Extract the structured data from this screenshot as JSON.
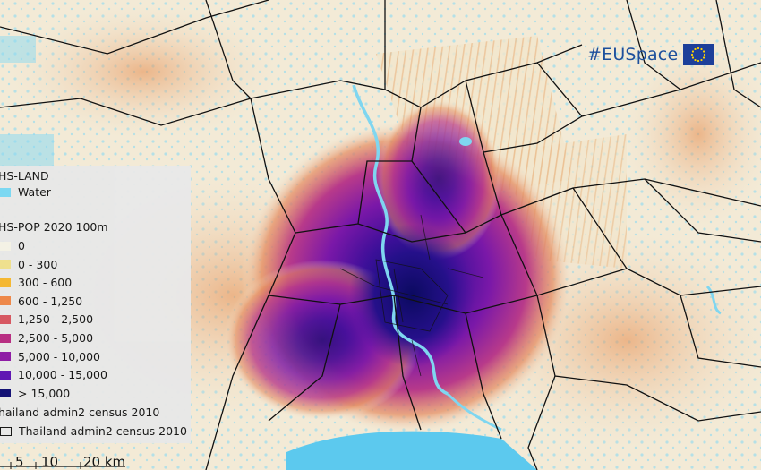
{
  "brand": {
    "text": "#EUSpace",
    "flag_icon": "eu-flag-icon",
    "color": "#1d4f9c"
  },
  "legend": {
    "land_title": "HS-LAND",
    "water_label": "Water",
    "water_color": "#78d8f4",
    "pop_title": "HS-POP 2020 100m",
    "pop_classes": [
      {
        "label": "0",
        "color": "#f5f3e6"
      },
      {
        "label": "0 - 300",
        "color": "#efe08c"
      },
      {
        "label": "300 - 600",
        "color": "#f6b62c"
      },
      {
        "label": "600 - 1,250",
        "color": "#ee8544"
      },
      {
        "label": "1,250 - 2,500",
        "color": "#d6535d"
      },
      {
        "label": "2,500 - 5,000",
        "color": "#b6287f"
      },
      {
        "label": "5,000 - 10,000",
        "color": "#8b15a4"
      },
      {
        "label": "10,000 - 15,000",
        "color": "#5b0fb2"
      },
      {
        "label": "> 15,000",
        "color": "#0c0b72"
      }
    ],
    "admin_title": "hailand admin2 census 2010",
    "admin_item_label": "Thailand admin2 census 2010"
  },
  "scale": {
    "ticks": [
      "5",
      "10",
      "20 km"
    ]
  }
}
